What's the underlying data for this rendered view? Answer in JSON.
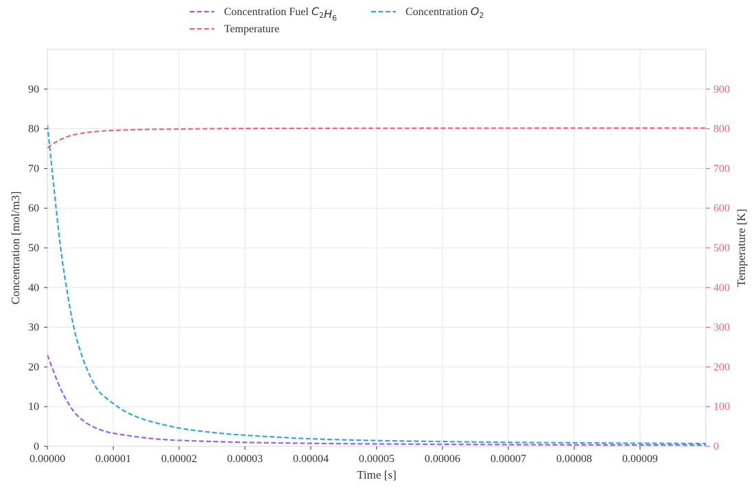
{
  "chart_data": {
    "type": "line",
    "xlabel": "Time [s]",
    "ylabel_left": "Concentration [mol/m3]",
    "ylabel_right": "Temperature [K]",
    "xlim": [
      0,
      0.0001
    ],
    "ylim_left": [
      0,
      100
    ],
    "ylim_right": [
      0,
      1000
    ],
    "x_ticks": [
      "0.00000",
      "0.00001",
      "0.00002",
      "0.00003",
      "0.00004",
      "0.00005",
      "0.00006",
      "0.00007",
      "0.00008",
      "0.00009"
    ],
    "y_left_ticks": [
      "0",
      "10",
      "20",
      "30",
      "40",
      "50",
      "60",
      "70",
      "80",
      "90"
    ],
    "y_right_ticks": [
      "0",
      "100",
      "200",
      "300",
      "400",
      "500",
      "600",
      "700",
      "800",
      "900"
    ],
    "grid": true,
    "legend_position": "top-center",
    "series": [
      {
        "name": "Concentration Fuel C2H6",
        "legend_main": "Concentration Fuel ",
        "legend_math": [
          {
            "t": "C",
            "sub": "2"
          },
          {
            "t": "H",
            "sub": "6"
          }
        ],
        "axis": "left",
        "color": "#9b5cf0",
        "x": [
          0,
          2e-06,
          4e-06,
          6e-06,
          8e-06,
          1e-05,
          1.5e-05,
          2e-05,
          3e-05,
          4e-05,
          5e-05,
          6e-05,
          7e-05,
          8e-05,
          9e-05,
          0.0001
        ],
        "y": [
          23,
          14.5,
          8.8,
          5.8,
          4.2,
          3.3,
          2.1,
          1.5,
          1.0,
          0.75,
          0.6,
          0.5,
          0.42,
          0.37,
          0.33,
          0.3
        ]
      },
      {
        "name": "Concentration O2",
        "legend_main": "Concentration ",
        "legend_math": [
          {
            "t": "O",
            "sub": "2"
          }
        ],
        "axis": "left",
        "color": "#32a2e6",
        "x": [
          0,
          1e-06,
          2e-06,
          3e-06,
          4e-06,
          5e-06,
          6e-06,
          7e-06,
          8e-06,
          1e-05,
          1.2e-05,
          1.5e-05,
          2e-05,
          2.5e-05,
          3e-05,
          4e-05,
          5e-05,
          6e-05,
          7e-05,
          8e-05,
          9e-05,
          0.0001
        ],
        "y": [
          81,
          65,
          50,
          39,
          30,
          24,
          19.5,
          16,
          13.5,
          10.8,
          8.6,
          6.6,
          4.6,
          3.5,
          2.8,
          1.9,
          1.45,
          1.2,
          1.0,
          0.88,
          0.78,
          0.7
        ]
      },
      {
        "name": "Temperature",
        "legend_main": "Temperature",
        "legend_math": [],
        "axis": "right",
        "color": "#f2617f",
        "x": [
          0,
          1e-06,
          2e-06,
          3e-06,
          4e-06,
          5e-06,
          6e-06,
          8e-06,
          1e-05,
          1.2e-05,
          1.5e-05,
          2e-05,
          2.5e-05,
          3e-05,
          4e-05,
          5e-05,
          6e-05,
          7e-05,
          8e-05,
          9e-05,
          0.0001
        ],
        "y": [
          752,
          764,
          773,
          780,
          785,
          788,
          791,
          794,
          796,
          797,
          798.5,
          799.5,
          800.3,
          800.8,
          801.2,
          801.5,
          801.7,
          801.8,
          801.9,
          801.95,
          802
        ]
      }
    ]
  },
  "colors": {
    "grid": "#e5e5e5",
    "frame": "#dddddd",
    "text": "#333333",
    "right_axis": "#f2617f"
  }
}
